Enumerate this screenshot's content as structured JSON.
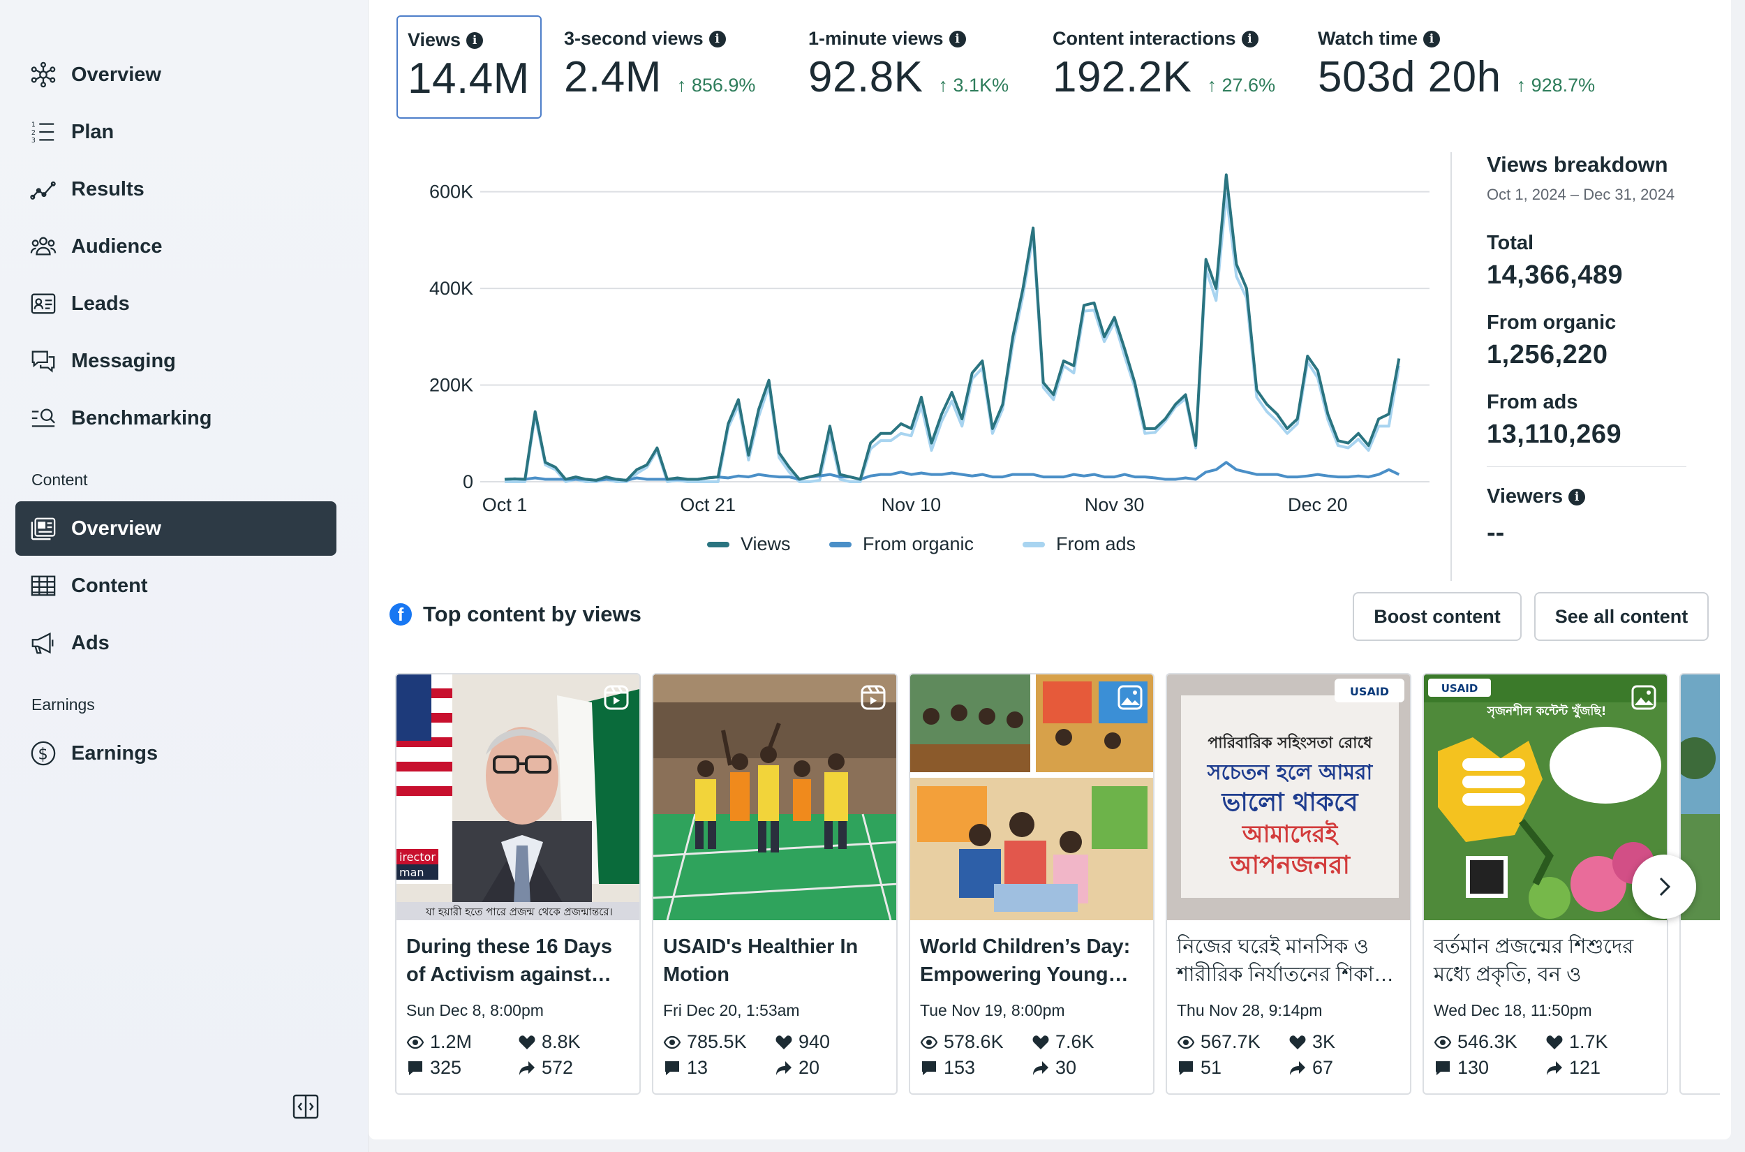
{
  "sidebar": {
    "items": [
      {
        "label": "Overview",
        "icon": "overview-network-icon"
      },
      {
        "label": "Plan",
        "icon": "plan-list-icon"
      },
      {
        "label": "Results",
        "icon": "results-trend-icon"
      },
      {
        "label": "Audience",
        "icon": "audience-people-icon"
      },
      {
        "label": "Leads",
        "icon": "leads-card-icon"
      },
      {
        "label": "Messaging",
        "icon": "messaging-chat-icon"
      },
      {
        "label": "Benchmarking",
        "icon": "benchmarking-search-icon"
      }
    ],
    "content_section": "Content",
    "content_items": [
      {
        "label": "Overview",
        "icon": "content-overview-icon",
        "active": true
      },
      {
        "label": "Content",
        "icon": "content-table-icon"
      },
      {
        "label": "Ads",
        "icon": "ads-megaphone-icon"
      }
    ],
    "earnings_section": "Earnings",
    "earnings_items": [
      {
        "label": "Earnings",
        "icon": "earnings-dollar-icon"
      }
    ]
  },
  "metrics": [
    {
      "title": "Views",
      "value": "14.4M",
      "change": "",
      "selected": true
    },
    {
      "title": "3-second views",
      "value": "2.4M",
      "change": "↑ 856.9%"
    },
    {
      "title": "1-minute views",
      "value": "92.8K",
      "change": "↑ 3.1K%"
    },
    {
      "title": "Content interactions",
      "value": "192.2K",
      "change": "↑ 27.6%"
    },
    {
      "title": "Watch time",
      "value": "503d 20h",
      "change": "↑ 928.7%"
    }
  ],
  "chart_data": {
    "type": "line",
    "title": "",
    "xlabel": "",
    "ylabel": "",
    "ylim": [
      0,
      650000
    ],
    "y_ticks": [
      0,
      200000,
      400000,
      600000
    ],
    "y_tick_labels": [
      "0",
      "200K",
      "400K",
      "600K"
    ],
    "x_tick_labels": [
      "Oct 1",
      "Oct 21",
      "Nov 10",
      "Nov 30",
      "Dec 20"
    ],
    "x_tick_days": [
      0,
      20,
      40,
      60,
      80
    ],
    "x_range_days": [
      0,
      91
    ],
    "legend_position": "bottom-center",
    "grid": true,
    "series": [
      {
        "name": "Views",
        "color": "#2a7480",
        "values": [
          5000,
          6000,
          5000,
          145000,
          40000,
          30000,
          5000,
          10000,
          5000,
          3000,
          10000,
          5000,
          3000,
          25000,
          35000,
          70000,
          5000,
          8000,
          5000,
          5000,
          8000,
          10000,
          120000,
          170000,
          55000,
          150000,
          210000,
          60000,
          30000,
          5000,
          10000,
          15000,
          115000,
          15000,
          10000,
          5000,
          80000,
          100000,
          100000,
          120000,
          110000,
          175000,
          80000,
          140000,
          185000,
          130000,
          225000,
          250000,
          110000,
          160000,
          300000,
          400000,
          525000,
          205000,
          180000,
          250000,
          240000,
          365000,
          370000,
          300000,
          340000,
          275000,
          205000,
          110000,
          110000,
          130000,
          160000,
          180000,
          75000,
          460000,
          400000,
          635000,
          450000,
          400000,
          190000,
          160000,
          140000,
          110000,
          130000,
          260000,
          230000,
          140000,
          85000,
          80000,
          100000,
          75000,
          130000,
          140000,
          255000
        ]
      },
      {
        "name": "From organic",
        "color": "#4a8fc7",
        "values": [
          5000,
          6000,
          5000,
          8000,
          5000,
          5000,
          5000,
          5000,
          5000,
          3000,
          5000,
          5000,
          3000,
          8000,
          5000,
          5000,
          5000,
          5000,
          5000,
          5000,
          8000,
          10000,
          8000,
          12000,
          10000,
          15000,
          12000,
          10000,
          10000,
          5000,
          10000,
          12000,
          15000,
          10000,
          10000,
          5000,
          12000,
          15000,
          15000,
          20000,
          15000,
          18000,
          15000,
          15000,
          18000,
          15000,
          12000,
          15000,
          10000,
          10000,
          15000,
          15000,
          15000,
          10000,
          10000,
          10000,
          15000,
          12000,
          15000,
          10000,
          10000,
          15000,
          10000,
          10000,
          8000,
          5000,
          5000,
          8000,
          5000,
          20000,
          25000,
          40000,
          25000,
          20000,
          15000,
          15000,
          15000,
          10000,
          10000,
          12000,
          15000,
          12000,
          10000,
          10000,
          12000,
          10000,
          15000,
          25000,
          15000
        ]
      },
      {
        "name": "From ads",
        "color": "#a8d4f0",
        "values": [
          0,
          0,
          0,
          137000,
          35000,
          25000,
          0,
          5000,
          0,
          0,
          5000,
          0,
          0,
          17000,
          30000,
          65000,
          0,
          3000,
          0,
          0,
          0,
          0,
          112000,
          158000,
          45000,
          135000,
          198000,
          50000,
          20000,
          0,
          0,
          3000,
          100000,
          5000,
          0,
          0,
          68000,
          85000,
          85000,
          100000,
          95000,
          157000,
          65000,
          125000,
          167000,
          115000,
          213000,
          235000,
          100000,
          150000,
          285000,
          385000,
          510000,
          195000,
          170000,
          240000,
          225000,
          353000,
          355000,
          290000,
          330000,
          260000,
          195000,
          100000,
          102000,
          125000,
          155000,
          172000,
          70000,
          440000,
          375000,
          595000,
          425000,
          380000,
          175000,
          145000,
          125000,
          100000,
          120000,
          248000,
          215000,
          128000,
          75000,
          70000,
          88000,
          65000,
          115000,
          115000,
          240000
        ]
      }
    ]
  },
  "breakdown": {
    "title": "Views breakdown",
    "range": "Oct 1, 2024 – Dec 31, 2024",
    "total_label": "Total",
    "total_value": "14,366,489",
    "organic_label": "From organic",
    "organic_value": "1,256,220",
    "ads_label": "From ads",
    "ads_value": "13,110,269",
    "viewers_label": "Viewers",
    "viewers_value": "--"
  },
  "top_content": {
    "title": "Top content by views",
    "boost_label": "Boost content",
    "see_all_label": "See all content",
    "cards": [
      {
        "title": "During these 16 Days of Activism against…",
        "date": "Sun Dec 8, 8:00pm",
        "views": "1.2M",
        "reactions": "8.8K",
        "comments": "325",
        "shares": "572",
        "type": "reel"
      },
      {
        "title": "USAID's Healthier In Motion",
        "date": "Fri Dec 20, 1:53am",
        "views": "785.5K",
        "reactions": "940",
        "comments": "13",
        "shares": "20",
        "type": "reel"
      },
      {
        "title": "World Children’s Day: Empowering Young…",
        "date": "Tue Nov 19, 8:00pm",
        "views": "578.6K",
        "reactions": "7.6K",
        "comments": "153",
        "shares": "30",
        "type": "photo"
      },
      {
        "title": "নিজের ঘরেই মানসিক ও শারীরিক নির্যাতনের শিকা…",
        "date": "Thu Nov 28, 9:14pm",
        "views": "567.7K",
        "reactions": "3K",
        "comments": "51",
        "shares": "67",
        "type": "photo"
      },
      {
        "title": "বর্তমান প্রজন্মের শিশুদের মধ্যে প্রকৃতি, বন ও পরিবে…",
        "date": "Wed Dec 18, 11:50pm",
        "views": "546.3K",
        "reactions": "1.7K",
        "comments": "130",
        "shares": "121",
        "type": "photo"
      }
    ],
    "thumb_text": {
      "card1_banner": "যা হয়ারী হতে পারে প্রজন্ম থেকে প্রজন্মান্তরে।",
      "card1_tag1": "irector",
      "card1_tag2": "man",
      "card4_logo": "USAID",
      "card4_lines": [
        "পারিবারিক সহিংসতা রোধে",
        "সচেতন হলে আমরা",
        "ভালো থাকবে",
        "আমাদেরই",
        "আপনজনরা"
      ],
      "card5_logo": "USAID",
      "card5_header": "সৃজনশীল কন্টেন্ট খুঁজছি!"
    }
  }
}
